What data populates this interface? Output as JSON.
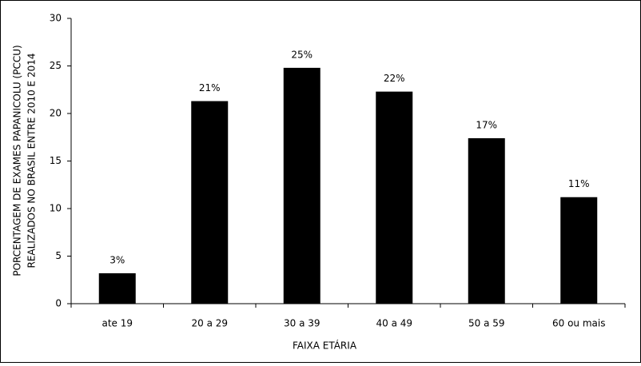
{
  "chart_data": {
    "type": "bar",
    "y_label": [
      "PORCENTAGEM DE EXAMES PAPANICOLU (PCCU)",
      "REALIZADOS NO BRASIL ENTRE 2010 E 2014"
    ],
    "x_label": "FAIXA ETÁRIA",
    "categories": [
      "ate 19",
      "20 a 29",
      "30 a 39",
      "40 a 49",
      "50 a 59",
      "60 ou mais"
    ],
    "values": [
      3.2,
      21.3,
      24.8,
      22.3,
      17.4,
      11.2
    ],
    "value_labels": [
      "3%",
      "21%",
      "25%",
      "22%",
      "17%",
      "11%"
    ],
    "color": "#000000",
    "ylim": [
      0,
      30
    ],
    "yticks": [
      0,
      5,
      10,
      15,
      20,
      25,
      30
    ],
    "grid": false
  }
}
